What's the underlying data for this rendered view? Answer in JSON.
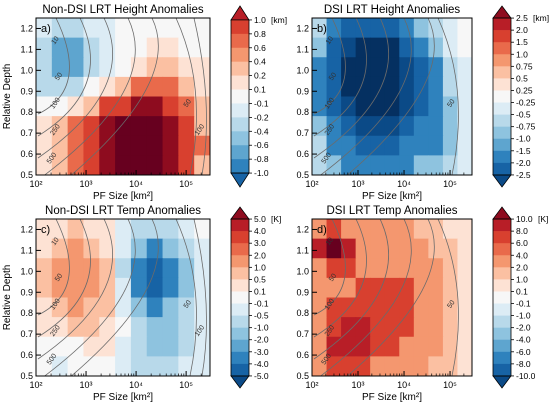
{
  "colors": {
    "positive_ramp": [
      "#fde2d4",
      "#fbc0a2",
      "#f4976f",
      "#e96a4b",
      "#d8402f",
      "#b81e27",
      "#8e0c1f",
      "#67001f"
    ],
    "negative_ramp": [
      "#dcecf5",
      "#b8d9ea",
      "#8ec3df",
      "#5ea5cf",
      "#2f82bd",
      "#1763a5",
      "#0b4a87",
      "#053061"
    ],
    "neutral": "#f7f7f7",
    "contour": "#6b6b6b"
  },
  "chart_data": [
    {
      "type": "heatmap",
      "title": "Non-DSI LRT Height Anomalies",
      "panel_label": "a)",
      "xlabel": "PF Size [km²]",
      "ylabel": "Relative Depth",
      "x_scale": "log",
      "xlim": [
        100,
        300000
      ],
      "ylim": [
        0.5,
        1.25
      ],
      "x_ticks": [
        "10²",
        "10³",
        "10⁴",
        "10⁵"
      ],
      "y_ticks": [
        "0.5",
        "0.6",
        "0.7",
        "0.8",
        "0.9",
        "1.0",
        "1.1",
        "1.2"
      ],
      "colorbar_unit": "[km]",
      "colorbar_labels": [
        "1.0",
        "0.8",
        "0.6",
        "0.4",
        "0.2",
        "0.1",
        "-0.1",
        "-0.2",
        "-0.4",
        "-0.6",
        "-0.8",
        "-1.0"
      ],
      "contour_labels": [
        "10",
        "50",
        "100",
        "250",
        "500",
        "50",
        "100"
      ],
      "blobs": [
        {
          "x": 15000,
          "y": 0.62,
          "sx": 0.8,
          "sy": 0.28,
          "value": 0.95
        },
        {
          "x": 4000,
          "y": 0.7,
          "sx": 1.0,
          "sy": 0.18,
          "value": 0.4
        },
        {
          "x": 800,
          "y": 0.78,
          "sx": 0.55,
          "sy": 0.12,
          "value": 0.15
        },
        {
          "x": 350,
          "y": 0.97,
          "sx": 0.4,
          "sy": 0.15,
          "value": -0.45
        },
        {
          "x": 1500,
          "y": 1.02,
          "sx": 0.6,
          "sy": 0.14,
          "value": -0.3
        },
        {
          "x": 6000,
          "y": 0.95,
          "sx": 0.9,
          "sy": 0.18,
          "value": -0.15
        }
      ]
    },
    {
      "type": "heatmap",
      "title": "DSI LRT Height Anomalies",
      "panel_label": "b)",
      "xlabel": "PF Size [km²]",
      "ylabel": "",
      "x_scale": "log",
      "xlim": [
        100,
        300000
      ],
      "ylim": [
        0.5,
        1.25
      ],
      "x_ticks": [
        "10²",
        "10³",
        "10⁴",
        "10⁵"
      ],
      "y_ticks": [
        "0.5",
        "0.6",
        "0.7",
        "0.8",
        "0.9",
        "1.0",
        "1.1",
        "1.2"
      ],
      "colorbar_unit": "[km]",
      "colorbar_labels": [
        "2.5",
        "2.0",
        "1.5",
        "1.0",
        "0.75",
        "0.5",
        "0.25",
        "-0.25",
        "-0.5",
        "-0.75",
        "-1.0",
        "-1.5",
        "-2.0",
        "-2.5"
      ],
      "contour_labels": [
        "10",
        "50",
        "100",
        "250",
        "500",
        "50"
      ],
      "blobs": [
        {
          "x": 2000,
          "y": 1.0,
          "sx": 0.75,
          "sy": 0.2,
          "value": -2.4
        },
        {
          "x": 1500,
          "y": 0.75,
          "sx": 0.9,
          "sy": 0.3,
          "value": -1.1
        },
        {
          "x": 15000,
          "y": 0.8,
          "sx": 0.8,
          "sy": 0.35,
          "value": -0.6
        },
        {
          "x": 90000,
          "y": 0.65,
          "sx": 0.35,
          "sy": 0.15,
          "value": -0.3
        }
      ]
    },
    {
      "type": "heatmap",
      "title": "Non-DSI LRT Temp Anomalies",
      "panel_label": "c)",
      "xlabel": "PF Size [km²]",
      "ylabel": "Relative Depth",
      "x_scale": "log",
      "xlim": [
        100,
        300000
      ],
      "ylim": [
        0.5,
        1.25
      ],
      "x_ticks": [
        "10²",
        "10³",
        "10⁴",
        "10⁵"
      ],
      "y_ticks": [
        "0.5",
        "0.6",
        "0.7",
        "0.8",
        "0.9",
        "1.0",
        "1.1",
        "1.2"
      ],
      "colorbar_unit": "[K]",
      "colorbar_labels": [
        "5.0",
        "4.0",
        "3.0",
        "2.0",
        "1.0",
        "0.5",
        "0.1",
        "-0.1",
        "-0.5",
        "-1.0",
        "-2.0",
        "-3.0",
        "-4.0",
        "-5.0"
      ],
      "contour_labels": [
        "10",
        "50",
        "100",
        "250",
        "500",
        "50",
        "100"
      ],
      "blobs": [
        {
          "x": 25000,
          "y": 1.0,
          "sx": 0.4,
          "sy": 0.12,
          "value": -3.2
        },
        {
          "x": 30000,
          "y": 0.7,
          "sx": 0.45,
          "sy": 0.25,
          "value": -1.2
        },
        {
          "x": 600,
          "y": 0.98,
          "sx": 0.5,
          "sy": 0.16,
          "value": 1.3
        },
        {
          "x": 1500,
          "y": 0.8,
          "sx": 0.7,
          "sy": 0.2,
          "value": 0.35
        },
        {
          "x": 400,
          "y": 0.62,
          "sx": 0.35,
          "sy": 0.1,
          "value": -0.4
        }
      ]
    },
    {
      "type": "heatmap",
      "title": "DSI LRT Temp Anomalies",
      "panel_label": "d)",
      "xlabel": "PF Size [km²]",
      "ylabel": "",
      "x_scale": "log",
      "xlim": [
        100,
        300000
      ],
      "ylim": [
        0.5,
        1.25
      ],
      "x_ticks": [
        "10²",
        "10³",
        "10⁴",
        "10⁵"
      ],
      "y_ticks": [
        "0.5",
        "0.6",
        "0.7",
        "0.8",
        "0.9",
        "1.0",
        "1.1",
        "1.2"
      ],
      "colorbar_unit": "[K]",
      "colorbar_labels": [
        "10.0",
        "8.0",
        "6.0",
        "4.0",
        "2.0",
        "1.0",
        "0.1",
        "-0.1",
        "-1.0",
        "-2.0",
        "-4.0",
        "-6.0",
        "-8.0",
        "-10.0"
      ],
      "contour_labels": [
        "10",
        "50",
        "100",
        "250",
        "500",
        "50"
      ],
      "blobs": [
        {
          "x": 300,
          "y": 1.12,
          "sx": 0.3,
          "sy": 0.06,
          "value": 8.5
        },
        {
          "x": 1200,
          "y": 0.85,
          "sx": 0.9,
          "sy": 0.32,
          "value": 3.6
        },
        {
          "x": 600,
          "y": 0.65,
          "sx": 0.4,
          "sy": 0.12,
          "value": 5.0
        },
        {
          "x": 20000,
          "y": 0.8,
          "sx": 0.7,
          "sy": 0.3,
          "value": 2.4
        }
      ]
    }
  ]
}
